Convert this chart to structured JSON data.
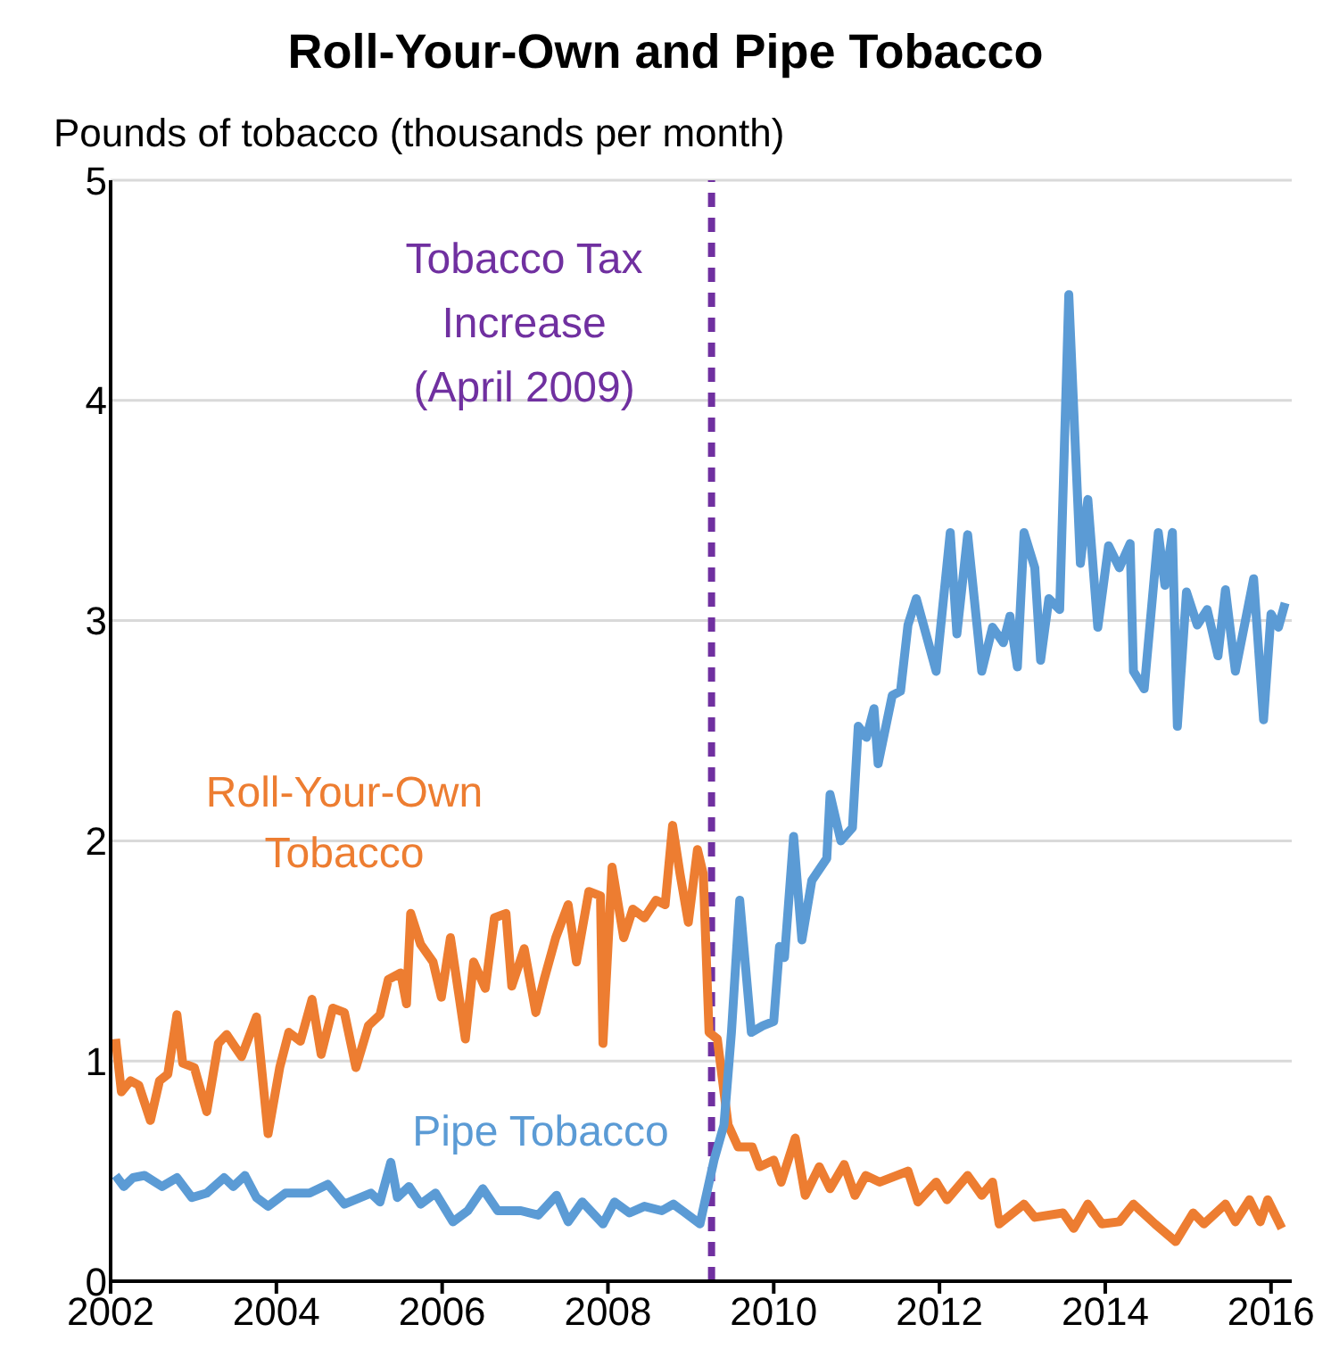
{
  "chart_data": {
    "type": "line",
    "title": "Roll-Your-Own and Pipe Tobacco",
    "ylabel": "Pounds of tobacco (thousands per month)",
    "xlim": [
      2002,
      2016.25
    ],
    "xticks": [
      2002,
      2004,
      2006,
      2008,
      2010,
      2012,
      2014,
      2016
    ],
    "ylim": [
      0,
      5
    ],
    "yticks": [
      0,
      1,
      2,
      3,
      4,
      5
    ],
    "grid": "y",
    "legend": false,
    "line_style": "solid",
    "marker": "none",
    "ref_lines": [
      {
        "axis": "x",
        "value": 2009.25,
        "label": "Tobacco Tax Increase (April 2009)",
        "color": "#7030a0",
        "line_style": "dashed"
      }
    ],
    "series": [
      {
        "name": "Roll-Your-Own Tobacco",
        "color": "#ed7d31",
        "x": [
          2002.06,
          2002.13,
          2002.24,
          2002.34,
          2002.48,
          2002.59,
          2002.69,
          2002.8,
          2002.87,
          2003.01,
          2003.16,
          2003.3,
          2003.4,
          2003.58,
          2003.76,
          2003.9,
          2004.04,
          2004.15,
          2004.29,
          2004.43,
          2004.54,
          2004.68,
          2004.82,
          2004.96,
          2005.11,
          2005.25,
          2005.35,
          2005.5,
          2005.57,
          2005.62,
          2005.74,
          2005.89,
          2005.99,
          2006.1,
          2006.28,
          2006.38,
          2006.52,
          2006.63,
          2006.77,
          2006.84,
          2006.99,
          2007.13,
          2007.23,
          2007.37,
          2007.52,
          2007.62,
          2007.77,
          2007.91,
          2007.94,
          2008.05,
          2008.19,
          2008.3,
          2008.44,
          2008.58,
          2008.69,
          2008.78,
          2008.87,
          2008.97,
          2009.08,
          2009.15,
          2009.22,
          2009.32,
          2009.45,
          2009.57,
          2009.74,
          2009.83,
          2010.0,
          2010.09,
          2010.26,
          2010.38,
          2010.55,
          2010.68,
          2010.85,
          2010.98,
          2011.11,
          2011.28,
          2011.62,
          2011.74,
          2011.96,
          2012.09,
          2012.34,
          2012.51,
          2012.64,
          2012.72,
          2013.02,
          2013.15,
          2013.49,
          2013.62,
          2013.79,
          2013.96,
          2014.17,
          2014.34,
          2014.6,
          2014.85,
          2015.06,
          2015.19,
          2015.45,
          2015.57,
          2015.74,
          2015.87,
          2015.96,
          2016.13
        ],
        "values": [
          1.1,
          0.86,
          0.91,
          0.89,
          0.73,
          0.91,
          0.94,
          1.21,
          0.99,
          0.97,
          0.77,
          1.08,
          1.12,
          1.02,
          1.2,
          0.67,
          0.97,
          1.13,
          1.09,
          1.28,
          1.03,
          1.24,
          1.22,
          0.97,
          1.16,
          1.21,
          1.37,
          1.4,
          1.26,
          1.67,
          1.53,
          1.45,
          1.29,
          1.56,
          1.1,
          1.45,
          1.33,
          1.65,
          1.67,
          1.34,
          1.51,
          1.22,
          1.37,
          1.56,
          1.71,
          1.45,
          1.77,
          1.75,
          1.08,
          1.88,
          1.56,
          1.69,
          1.65,
          1.73,
          1.71,
          2.07,
          1.85,
          1.63,
          1.96,
          1.85,
          1.13,
          1.1,
          0.71,
          0.61,
          0.61,
          0.52,
          0.55,
          0.45,
          0.65,
          0.39,
          0.52,
          0.42,
          0.53,
          0.39,
          0.48,
          0.45,
          0.5,
          0.36,
          0.45,
          0.37,
          0.48,
          0.39,
          0.45,
          0.26,
          0.35,
          0.29,
          0.31,
          0.24,
          0.35,
          0.26,
          0.27,
          0.35,
          0.26,
          0.18,
          0.31,
          0.26,
          0.35,
          0.27,
          0.37,
          0.27,
          0.37,
          0.24
        ]
      },
      {
        "name": "Pipe Tobacco",
        "color": "#5b9bd5",
        "x": [
          2002.06,
          2002.16,
          2002.27,
          2002.41,
          2002.62,
          2002.8,
          2002.98,
          2003.16,
          2003.37,
          2003.48,
          2003.62,
          2003.76,
          2003.9,
          2004.11,
          2004.4,
          2004.62,
          2004.82,
          2005.14,
          2005.25,
          2005.38,
          2005.46,
          2005.6,
          2005.74,
          2005.92,
          2006.13,
          2006.31,
          2006.49,
          2006.67,
          2006.95,
          2007.16,
          2007.38,
          2007.52,
          2007.69,
          2007.94,
          2008.08,
          2008.26,
          2008.44,
          2008.65,
          2008.79,
          2008.97,
          2009.11,
          2009.18,
          2009.28,
          2009.4,
          2009.49,
          2009.59,
          2009.73,
          2009.87,
          2010.0,
          2010.07,
          2010.13,
          2010.24,
          2010.34,
          2010.46,
          2010.64,
          2010.68,
          2010.81,
          2010.95,
          2011.02,
          2011.12,
          2011.21,
          2011.26,
          2011.43,
          2011.53,
          2011.62,
          2011.72,
          2011.96,
          2012.13,
          2012.21,
          2012.34,
          2012.51,
          2012.64,
          2012.77,
          2012.85,
          2012.94,
          2013.02,
          2013.15,
          2013.22,
          2013.32,
          2013.45,
          2013.56,
          2013.7,
          2013.79,
          2013.91,
          2014.04,
          2014.17,
          2014.3,
          2014.34,
          2014.47,
          2014.64,
          2014.72,
          2014.81,
          2014.87,
          2014.98,
          2015.11,
          2015.23,
          2015.36,
          2015.45,
          2015.57,
          2015.79,
          2015.91,
          2016.0,
          2016.09,
          2016.17
        ],
        "values": [
          0.48,
          0.43,
          0.47,
          0.48,
          0.43,
          0.47,
          0.38,
          0.4,
          0.47,
          0.43,
          0.48,
          0.38,
          0.34,
          0.4,
          0.4,
          0.44,
          0.35,
          0.4,
          0.36,
          0.54,
          0.38,
          0.43,
          0.35,
          0.4,
          0.27,
          0.32,
          0.42,
          0.32,
          0.32,
          0.3,
          0.39,
          0.27,
          0.36,
          0.26,
          0.36,
          0.31,
          0.34,
          0.32,
          0.35,
          0.3,
          0.26,
          0.38,
          0.55,
          0.71,
          1.13,
          1.73,
          1.13,
          1.16,
          1.18,
          1.52,
          1.47,
          2.02,
          1.55,
          1.82,
          1.92,
          2.21,
          2.0,
          2.06,
          2.52,
          2.47,
          2.6,
          2.35,
          2.66,
          2.68,
          2.98,
          3.1,
          2.77,
          3.4,
          2.94,
          3.39,
          2.77,
          2.97,
          2.9,
          3.02,
          2.79,
          3.4,
          3.24,
          2.82,
          3.1,
          3.05,
          4.48,
          3.26,
          3.55,
          2.97,
          3.34,
          3.24,
          3.35,
          2.77,
          2.69,
          3.4,
          3.16,
          3.4,
          2.52,
          3.13,
          2.98,
          3.05,
          2.84,
          3.14,
          2.77,
          3.19,
          2.55,
          3.03,
          2.97,
          3.08
        ]
      }
    ]
  }
}
